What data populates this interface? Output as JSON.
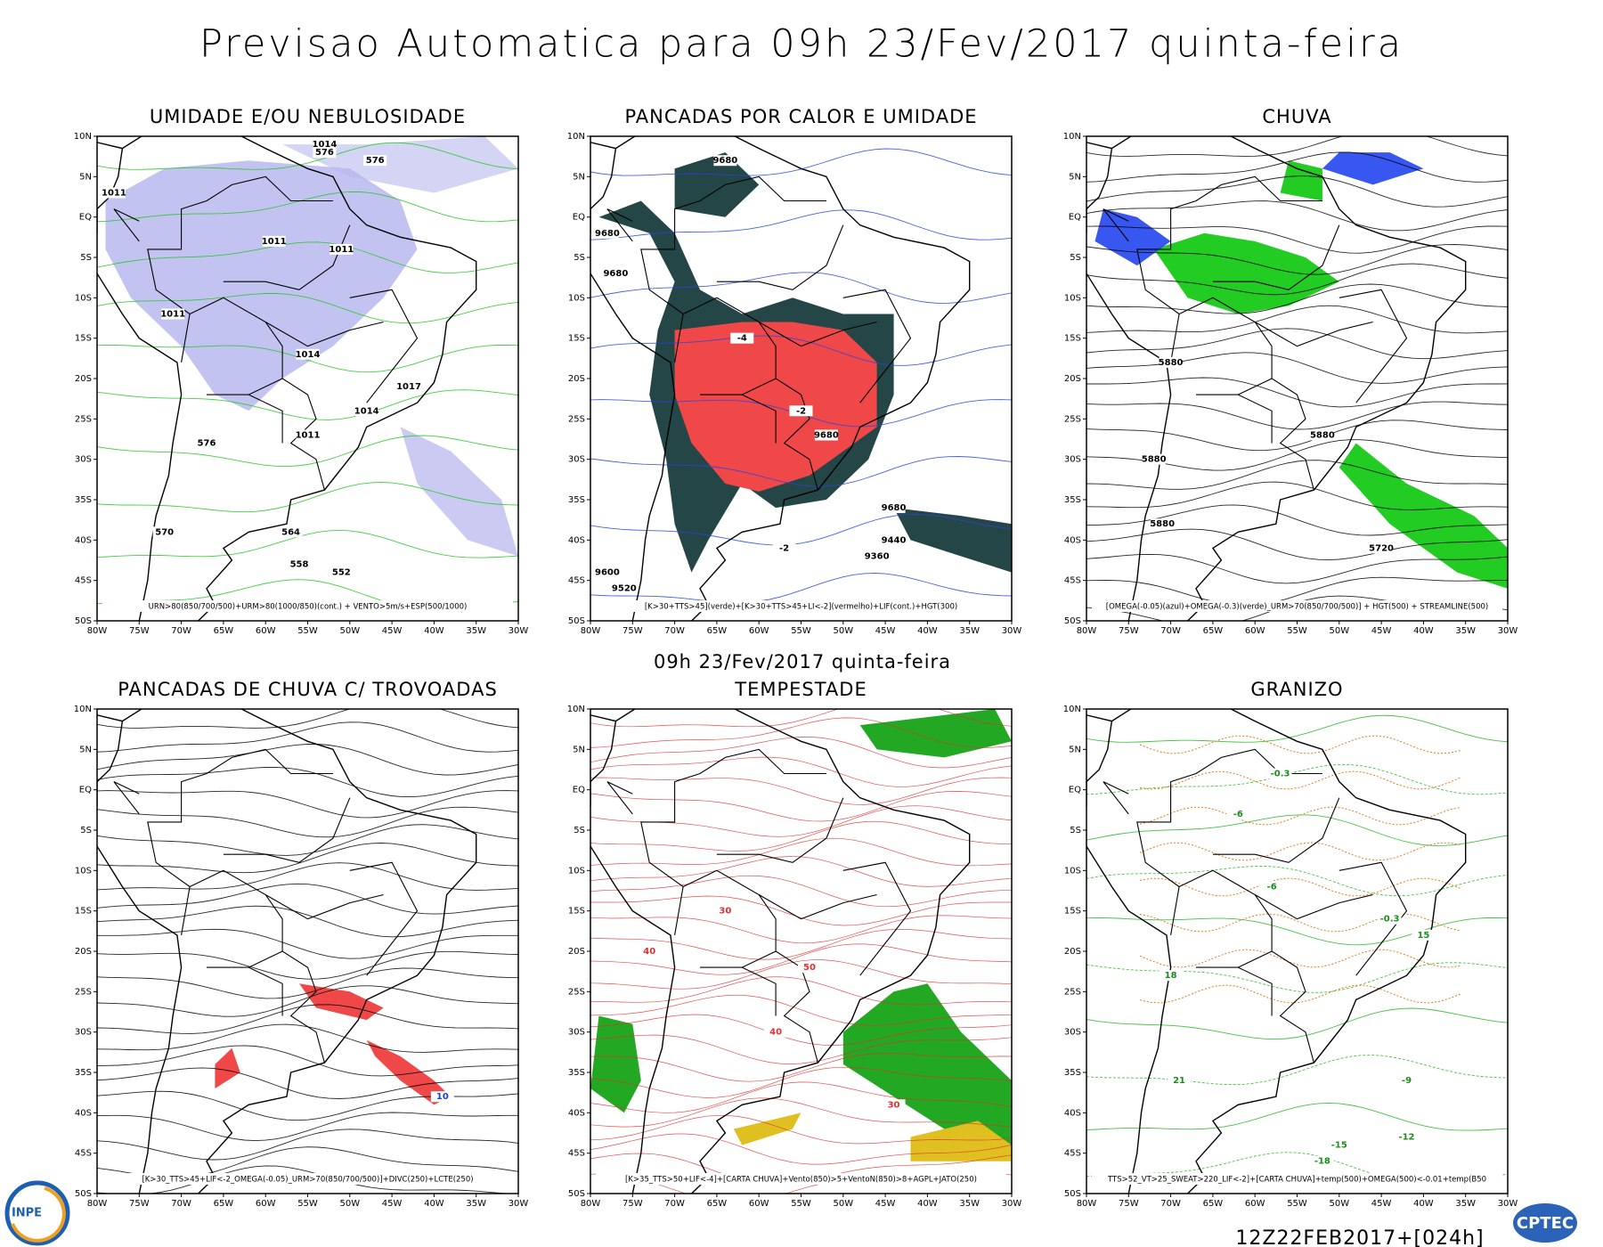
{
  "title": "Previsao Automatica  para 09h 23/Fev/2017 quinta-feira",
  "valid_label": "09h 23/Fev/2017 quinta-feira",
  "run_label": "12Z22FEB2017+[024h]",
  "logos": {
    "left": "INPE",
    "right": "CPTEC"
  },
  "lat_labels": [
    "10N",
    "5N",
    "EQ",
    "5S",
    "10S",
    "15S",
    "20S",
    "25S",
    "30S",
    "35S",
    "40S",
    "45S",
    "50S"
  ],
  "lon_labels": [
    "80W",
    "75W",
    "70W",
    "65W",
    "60W",
    "55W",
    "50W",
    "45W",
    "40W",
    "35W",
    "30W"
  ],
  "panels": [
    {
      "title": "UMIDADE E/OU NEBULOSIDADE",
      "caption": "URN>80(850/700/500)+URM>80(1000/850)(cont.) + VENTO>5m/s+ESP(500/1000)",
      "contour_labels": [
        "1014",
        "576",
        "576",
        "1011",
        "1011",
        "1011",
        "1011",
        "1014",
        "1017",
        "1014",
        "1011",
        "576",
        "570",
        "564",
        "558",
        "552"
      ]
    },
    {
      "title": "PANCADAS POR CALOR E UMIDADE",
      "caption": "[K>30+TTS>45](verde)+[K>30+TTS>45+LI<-2](vermelho)+LIF(cont.)+HGT(300)",
      "contour_labels": [
        "9680",
        "9680",
        "9680",
        "9680",
        "9680",
        "9600",
        "9520",
        "9440",
        "9360",
        "-2",
        "-4",
        "-2"
      ]
    },
    {
      "title": "CHUVA",
      "caption": "[OMEGA(-0.05)(azul)+OMEGA(-0.3)(verde)_URM>70(850/700/500)] + HGT(500) + STREAMLINE(500)",
      "contour_labels": [
        "5880",
        "5880",
        "5880",
        "5880",
        "5720"
      ]
    },
    {
      "title": "PANCADAS DE CHUVA C/ TROVOADAS",
      "caption": "[K>30_TTS>45+LIF<-2_OMEGA(-0.05)_URM>70(850/700/500)]+DIVC(250)+LCTE(250)",
      "contour_labels": [
        "10"
      ]
    },
    {
      "title": "TEMPESTADE",
      "caption": "[K>35_TTS>50+LIF<-4]+[CARTA CHUVA]+Vento(850)>5+VentoN(850)>8+AGPL+JATO(250)",
      "contour_labels": [
        "40",
        "30",
        "50",
        "40",
        "30"
      ]
    },
    {
      "title": "GRANIZO",
      "caption": "TTS>52_VT>25_SWEAT>220_LIF<-2]+[CARTA CHUVA]+temp(500)+OMEGA(500)<-0.01+temp(B50",
      "contour_labels": [
        "-6",
        "-6",
        "-0.3",
        "-0.3",
        "18",
        "15",
        "21",
        "-9",
        "-12",
        "-15",
        "-18"
      ]
    }
  ]
}
